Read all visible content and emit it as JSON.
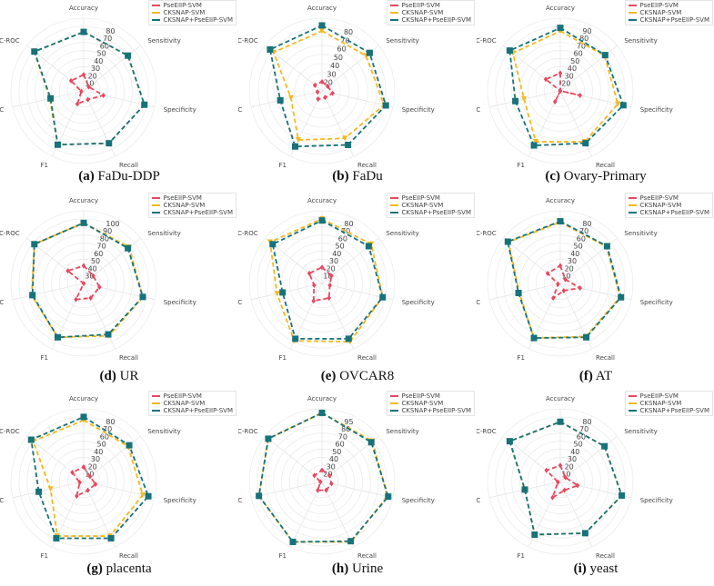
{
  "figure": {
    "legend": [
      {
        "label": "PseEIIP-SVM",
        "color": "#e8475f",
        "marker": "diamond"
      },
      {
        "label": "CKSNAP-SVM",
        "color": "#f5b81b",
        "marker": "triangle"
      },
      {
        "label": "CKSNAP+PseEIIP-SVM",
        "color": "#17727a",
        "marker": "square"
      }
    ],
    "axes": [
      "Accuracy",
      "Sensitivity",
      "Specificity",
      "Recall",
      "F1",
      "MCC",
      "AUC-ROC"
    ]
  },
  "chart_data": [
    {
      "type": "radar",
      "panel": "a",
      "title": "FaDu-DDP",
      "caption_letter": "(a)",
      "categories": [
        "Accuracy",
        "Sensitivity",
        "Specificity",
        "Recall",
        "F1",
        "MCC",
        "AUC-ROC"
      ],
      "rticks": [
        10,
        20,
        30,
        40,
        50,
        60,
        70,
        80
      ],
      "rlim": [
        0,
        90
      ],
      "series": [
        {
          "name": "PseEIIP-SVM",
          "values": [
            20,
            8,
            25,
            12,
            18,
            3,
            20
          ]
        },
        {
          "name": "CKSNAP-SVM",
          "values": [
            73,
            70,
            77,
            72,
            74,
            43,
            78
          ]
        },
        {
          "name": "CKSNAP+PseEIIP-SVM",
          "values": [
            73,
            70,
            77,
            72,
            74,
            42,
            78
          ]
        }
      ]
    },
    {
      "type": "radar",
      "panel": "b",
      "title": "FaDu",
      "caption_letter": "(b)",
      "categories": [
        "Accuracy",
        "Sensitivity",
        "Specificity",
        "Recall",
        "F1",
        "MCC",
        "AUC-ROC"
      ],
      "rticks": [
        20,
        30,
        40,
        50,
        60,
        70,
        80
      ],
      "rlim": [
        10,
        90
      ],
      "series": [
        {
          "name": "PseEIIP-SVM",
          "values": [
            20,
            18,
            22,
            18,
            20,
            15,
            20
          ]
        },
        {
          "name": "CKSNAP-SVM",
          "values": [
            76,
            72,
            80,
            68,
            70,
            45,
            78
          ]
        },
        {
          "name": "CKSNAP+PseEIIP-SVM",
          "values": [
            82,
            77,
            82,
            76,
            78,
            57,
            83
          ]
        }
      ]
    },
    {
      "type": "radar",
      "panel": "c",
      "title": "Ovary-Primary",
      "caption_letter": "(c)",
      "categories": [
        "Accuracy",
        "Sensitivity",
        "Specificity",
        "Recall",
        "F1",
        "MCC",
        "AUC-ROC"
      ],
      "rticks": [
        20,
        30,
        40,
        50,
        60,
        70,
        80,
        90
      ],
      "rlim": [
        10,
        100
      ],
      "series": [
        {
          "name": "PseEIIP-SVM",
          "values": [
            32,
            10,
            35,
            10,
            25,
            10,
            33
          ]
        },
        {
          "name": "CKSNAP-SVM",
          "values": [
            84,
            80,
            83,
            80,
            80,
            56,
            85
          ]
        },
        {
          "name": "CKSNAP+PseEIIP-SVM",
          "values": [
            88,
            81,
            90,
            82,
            85,
            67,
            90
          ]
        }
      ]
    },
    {
      "type": "radar",
      "panel": "d",
      "title": "UR",
      "caption_letter": "(d)",
      "categories": [
        "Accuracy",
        "Sensitivity",
        "Specificity",
        "Recall",
        "F1",
        "MCC",
        "AUC-ROC"
      ],
      "rticks": [
        30,
        40,
        50,
        60,
        70,
        80,
        90,
        100
      ],
      "rlim": [
        20,
        110
      ],
      "series": [
        {
          "name": "PseEIIP-SVM",
          "values": [
            42,
            35,
            40,
            40,
            42,
            20,
            45
          ]
        },
        {
          "name": "CKSNAP-SVM",
          "values": [
            95,
            92,
            95,
            92,
            94,
            86,
            98
          ]
        },
        {
          "name": "CKSNAP+PseEIIP-SVM",
          "values": [
            95,
            90,
            95,
            90,
            94,
            85,
            98
          ]
        }
      ]
    },
    {
      "type": "radar",
      "panel": "e",
      "title": "OVCAR8",
      "caption_letter": "(e)",
      "categories": [
        "Accuracy",
        "Sensitivity",
        "Specificity",
        "Recall",
        "F1",
        "MCC",
        "AUC-ROC"
      ],
      "rticks": [
        10,
        20,
        30,
        40,
        50,
        60,
        70,
        80
      ],
      "rlim": [
        0,
        90
      ],
      "series": [
        {
          "name": "PseEIIP-SVM",
          "values": [
            20,
            15,
            10,
            20,
            24,
            10,
            20
          ]
        },
        {
          "name": "CKSNAP-SVM",
          "values": [
            80,
            78,
            77,
            80,
            79,
            57,
            82
          ]
        },
        {
          "name": "CKSNAP+PseEIIP-SVM",
          "values": [
            78,
            74,
            77,
            76,
            76,
            50,
            78
          ]
        }
      ]
    },
    {
      "type": "radar",
      "panel": "f",
      "title": "AT",
      "caption_letter": "(f)",
      "categories": [
        "Accuracy",
        "Sensitivity",
        "Specificity",
        "Recall",
        "F1",
        "MCC",
        "AUC-ROC"
      ],
      "rticks": [
        10,
        20,
        30,
        40,
        50,
        60,
        70,
        80
      ],
      "rlim": [
        0,
        90
      ],
      "series": [
        {
          "name": "PseEIIP-SVM",
          "values": [
            22,
            8,
            25,
            10,
            20,
            3,
            20
          ]
        },
        {
          "name": "CKSNAP-SVM",
          "values": [
            76,
            73,
            76,
            73,
            75,
            52,
            82
          ]
        },
        {
          "name": "CKSNAP+PseEIIP-SVM",
          "values": [
            77,
            74,
            77,
            74,
            75,
            53,
            83
          ]
        }
      ]
    },
    {
      "type": "radar",
      "panel": "g",
      "title": "placenta",
      "caption_letter": "(g)",
      "categories": [
        "Accuracy",
        "Sensitivity",
        "Specificity",
        "Recall",
        "F1",
        "MCC",
        "AUC-ROC"
      ],
      "rticks": [
        10,
        20,
        30,
        40,
        50,
        60,
        70,
        80
      ],
      "rlim": [
        0,
        90
      ],
      "series": [
        {
          "name": "PseEIIP-SVM",
          "values": [
            18,
            10,
            15,
            12,
            20,
            5,
            18
          ]
        },
        {
          "name": "CKSNAP-SVM",
          "values": [
            76,
            70,
            75,
            75,
            75,
            42,
            80
          ]
        },
        {
          "name": "CKSNAP+PseEIIP-SVM",
          "values": [
            80,
            72,
            82,
            78,
            78,
            57,
            83
          ]
        }
      ]
    },
    {
      "type": "radar",
      "panel": "h",
      "title": "Urine",
      "caption_letter": "(h)",
      "categories": [
        "Accuracy",
        "Sensitivity",
        "Specificity",
        "Recall",
        "F1",
        "MCC",
        "AUC-ROC"
      ],
      "rticks": [
        20,
        30,
        40,
        50,
        60,
        70,
        80,
        95
      ],
      "rlim": [
        10,
        100
      ],
      "series": [
        {
          "name": "PseEIIP-SVM",
          "values": [
            24,
            22,
            22,
            22,
            22,
            12,
            22
          ]
        },
        {
          "name": "CKSNAP-SVM",
          "values": [
            95,
            90,
            93,
            93,
            93,
            90,
            95
          ]
        },
        {
          "name": "CKSNAP+PseEIIP-SVM",
          "values": [
            95,
            88,
            94,
            92,
            93,
            90,
            95
          ]
        }
      ]
    },
    {
      "type": "radar",
      "panel": "i",
      "title": "yeast",
      "caption_letter": "(i)",
      "categories": [
        "Accuracy",
        "Sensitivity",
        "Specificity",
        "Recall",
        "F1",
        "MCC",
        "AUC-ROC"
      ],
      "rticks": [
        10,
        20,
        30,
        40,
        50,
        60,
        70,
        80
      ],
      "rlim": [
        0,
        90
      ],
      "series": [
        {
          "name": "PseEIIP-SVM",
          "values": [
            20,
            8,
            22,
            12,
            22,
            3,
            22
          ]
        },
        {
          "name": "CKSNAP-SVM",
          "values": [
            74,
            70,
            78,
            71,
            73,
            45,
            80
          ]
        },
        {
          "name": "CKSNAP+PseEIIP-SVM",
          "values": [
            74,
            70,
            78,
            71,
            73,
            45,
            80
          ]
        }
      ]
    }
  ]
}
